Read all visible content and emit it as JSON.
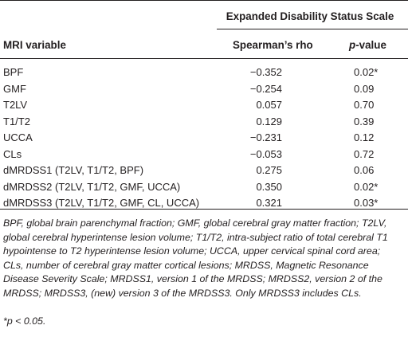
{
  "table": {
    "group_header": "Expanded Disability Status Scale",
    "col_variable": "MRI variable",
    "col_rho": "Spearman’s rho",
    "col_p_italic": "p",
    "col_p_rest": "-value",
    "rows": [
      {
        "variable": "BPF",
        "rho": "−0.352",
        "p": "0.02*"
      },
      {
        "variable": "GMF",
        "rho": "−0.254",
        "p": "0.09"
      },
      {
        "variable": "T2LV",
        "rho": "0.057",
        "p": "0.70"
      },
      {
        "variable": "T1/T2",
        "rho": "0.129",
        "p": "0.39"
      },
      {
        "variable": "UCCA",
        "rho": "−0.231",
        "p": "0.12"
      },
      {
        "variable": "CLs",
        "rho": "−0.053",
        "p": "0.72"
      },
      {
        "variable": "dMRDSS1 (T2LV, T1/T2, BPF)",
        "rho": "0.275",
        "p": "0.06"
      },
      {
        "variable": "dMRDSS2 (T2LV, T1/T2, GMF, UCCA)",
        "rho": "0.350",
        "p": "0.02*"
      },
      {
        "variable": "dMRDSS3 (T2LV, T1/T2, GMF, CL, UCCA)",
        "rho": "0.321",
        "p": "0.03*"
      }
    ]
  },
  "footnote": {
    "text": "BPF, global brain parenchymal fraction; GMF, global cerebral gray matter fraction; T2LV, global cerebral hyperintense lesion volume; T1/T2, intra-subject ratio of total cerebral T1 hypointense to T2 hyperintense lesion volume; UCCA, upper cervical spinal cord area; CLs, number of cerebral gray matter cortical lesions; MRDSS, Magnetic Resonance Disease Severity Scale; MRDSS1, version 1 of the MRDSS; MRDSS2, version 2 of the MRDSS; MRDSS3, (new) version 3 of the MRDSS3. Only MRDSS3 includes CLs.",
    "significance": "*p < 0.05."
  }
}
